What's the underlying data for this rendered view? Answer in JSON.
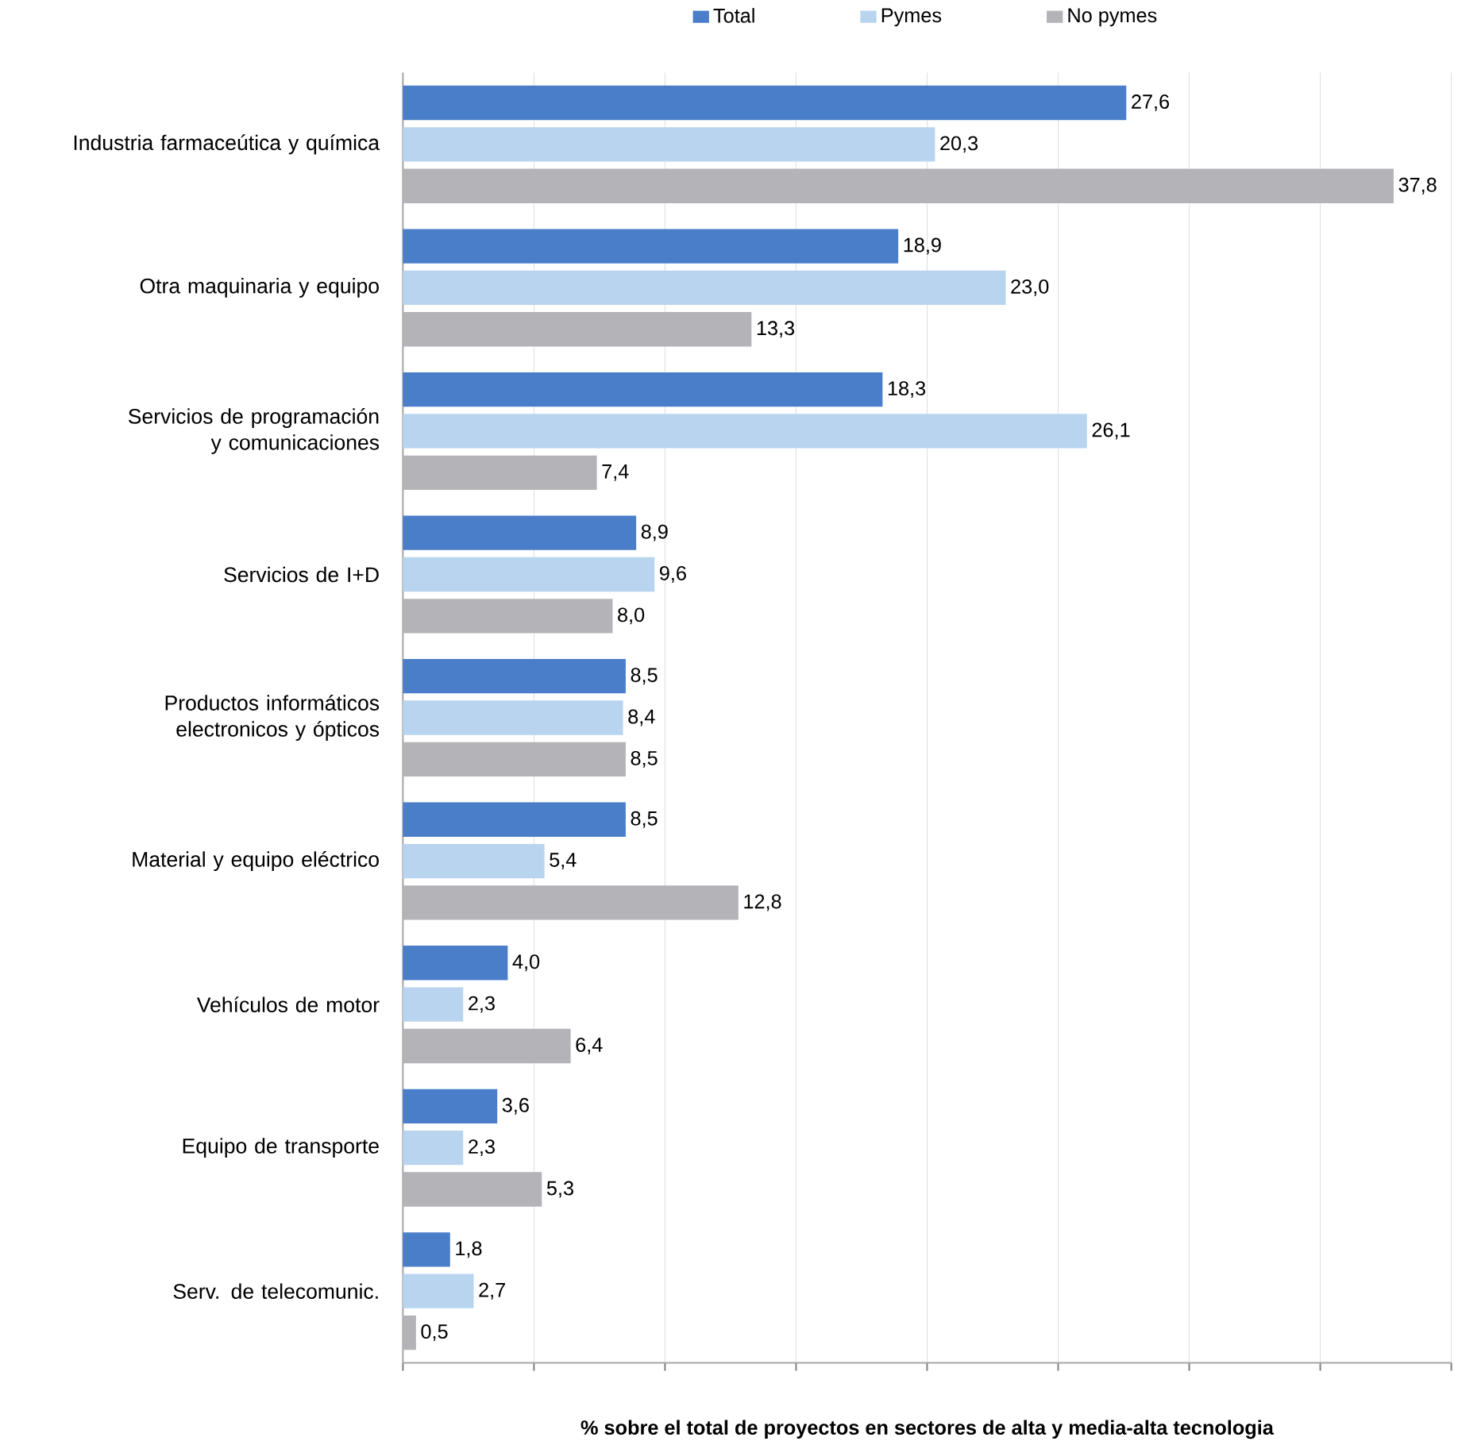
{
  "chart_data": {
    "type": "bar",
    "orientation": "horizontal",
    "xlabel": "% sobre el total de proyectos en sectores de alta y media-alta tecnologia",
    "categories": [
      "Industria farmaceútica y química",
      "Otra maquinaria y equipo",
      "Servicios de programación y comunicaciones",
      "Servicios de I+D",
      "Productos informáticos electronicos y ópticos",
      "Material y equipo eléctrico",
      "Vehículos de motor",
      "Equipo de transporte",
      "Serv. de telecomunic."
    ],
    "series": [
      {
        "name": "Total",
        "color": "#4a7ec9",
        "values": [
          27.6,
          18.9,
          18.3,
          8.9,
          8.5,
          8.5,
          4.0,
          3.6,
          1.8
        ],
        "value_labels": [
          "27,6",
          "18,9",
          "18,3",
          "8,9",
          "8,5",
          "8,5",
          "4,0",
          "3,6",
          "1,8"
        ]
      },
      {
        "name": "Pymes",
        "color": "#b9d4ef",
        "values": [
          20.3,
          23.0,
          26.1,
          9.6,
          8.4,
          5.4,
          2.3,
          2.3,
          2.7
        ],
        "value_labels": [
          "20,3",
          "23,0",
          "26,1",
          "9,6",
          "8,4",
          "5,4",
          "2,3",
          "2,3",
          "2,7"
        ]
      },
      {
        "name": "No pymes",
        "color": "#b4b4b8",
        "values": [
          37.8,
          13.3,
          7.4,
          8.0,
          8.5,
          12.8,
          6.4,
          5.3,
          0.5
        ],
        "value_labels": [
          "37,8",
          "13,3",
          "7,4",
          "8,0",
          "8,5",
          "12,8",
          "6,4",
          "5,3",
          "0,5"
        ]
      }
    ],
    "xlim": [
      0,
      40
    ],
    "xticks": [
      {
        "value": 0,
        "label": null
      },
      {
        "value": 5,
        "label": null
      },
      {
        "value": 10,
        "label": null
      },
      {
        "value": 15,
        "label": null
      },
      {
        "value": 20,
        "label": null
      },
      {
        "value": 25,
        "label": null
      },
      {
        "value": 30,
        "label": null
      },
      {
        "value": 35,
        "label": null
      },
      {
        "value": 40,
        "label": null
      }
    ],
    "grid": "x",
    "legend": "top"
  }
}
